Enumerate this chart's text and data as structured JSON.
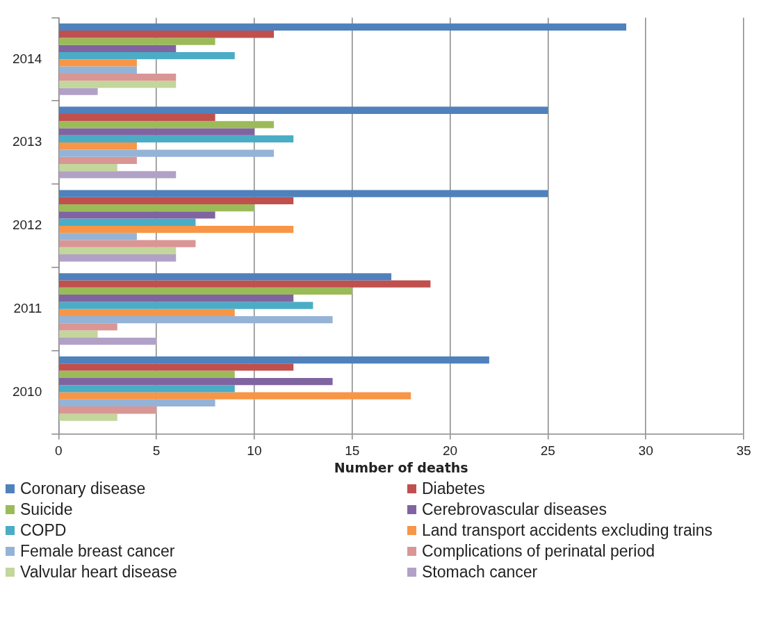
{
  "chart_data": {
    "type": "bar",
    "orientation": "horizontal",
    "xlabel": "Number of deaths",
    "categories": [
      "2014",
      "2013",
      "2012",
      "2011",
      "2010"
    ],
    "series": [
      {
        "name": "Coronary disease",
        "color": "#4f81bd",
        "values": [
          29,
          25,
          25,
          17,
          22
        ]
      },
      {
        "name": "Diabetes",
        "color": "#c0504d",
        "values": [
          11,
          8,
          12,
          19,
          12
        ]
      },
      {
        "name": "Suicide",
        "color": "#9bbb59",
        "values": [
          8,
          11,
          10,
          15,
          9
        ]
      },
      {
        "name": "Cerebrovascular diseases",
        "color": "#8064a2",
        "values": [
          6,
          10,
          8,
          12,
          14
        ]
      },
      {
        "name": "COPD",
        "color": "#4bacc6",
        "values": [
          9,
          12,
          7,
          13,
          9
        ]
      },
      {
        "name": "Land transport accidents excluding trains",
        "color": "#f79646",
        "values": [
          4,
          4,
          12,
          9,
          18
        ]
      },
      {
        "name": "Female breast cancer",
        "color": "#95b3d7",
        "values": [
          4,
          11,
          4,
          14,
          8
        ]
      },
      {
        "name": "Complications of perinatal period",
        "color": "#d99694",
        "values": [
          6,
          4,
          7,
          3,
          5
        ]
      },
      {
        "name": "Valvular heart disease",
        "color": "#c3d69b",
        "values": [
          6,
          3,
          6,
          2,
          3
        ]
      },
      {
        "name": "Stomach cancer",
        "color": "#b2a1c7",
        "values": [
          2,
          6,
          6,
          5,
          0
        ]
      }
    ],
    "xlim": [
      0,
      35
    ],
    "xticks": [
      0,
      5,
      10,
      15,
      20,
      25,
      30,
      35
    ],
    "grid": "x",
    "legend": "bottom"
  }
}
